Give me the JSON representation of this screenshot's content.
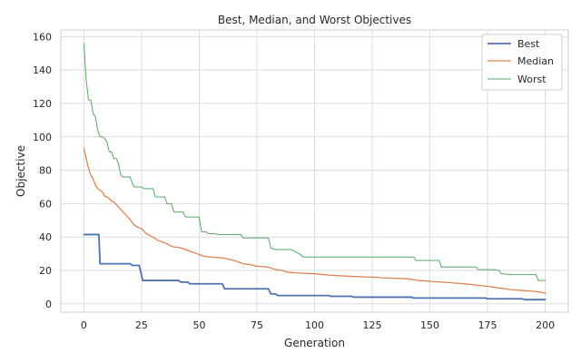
{
  "chart_data": {
    "type": "line",
    "title": "Best, Median, and Worst Objectives",
    "xlabel": "Generation",
    "ylabel": "Objective",
    "xlim": [
      -10,
      210
    ],
    "ylim": [
      -5,
      164
    ],
    "xticks": [
      0,
      25,
      50,
      75,
      100,
      125,
      150,
      175,
      200
    ],
    "yticks": [
      0,
      20,
      40,
      60,
      80,
      100,
      120,
      140,
      160
    ],
    "grid": true,
    "legend_position": "top-right",
    "series": [
      {
        "name": "Best",
        "color": "#4c72b0",
        "width": 1.8,
        "points": [
          [
            0,
            41.5
          ],
          [
            6.5,
            41.5
          ],
          [
            7,
            24
          ],
          [
            20,
            24
          ],
          [
            21,
            23
          ],
          [
            24,
            23
          ],
          [
            25.5,
            14
          ],
          [
            41,
            14
          ],
          [
            42,
            13
          ],
          [
            45,
            13
          ],
          [
            46,
            12
          ],
          [
            60,
            12
          ],
          [
            61,
            9
          ],
          [
            80,
            9
          ],
          [
            81,
            6
          ],
          [
            83,
            6
          ],
          [
            84,
            5
          ],
          [
            106,
            5
          ],
          [
            107,
            4.5
          ],
          [
            116,
            4.5
          ],
          [
            117,
            4
          ],
          [
            142,
            4
          ],
          [
            143,
            3.5
          ],
          [
            174,
            3.5
          ],
          [
            175,
            3
          ],
          [
            190,
            3
          ],
          [
            191,
            2.5
          ],
          [
            200,
            2.5
          ]
        ]
      },
      {
        "name": "Median",
        "color": "#dd8452",
        "width": 1.3,
        "points": [
          [
            0,
            93
          ],
          [
            1,
            87
          ],
          [
            2,
            81
          ],
          [
            3,
            77
          ],
          [
            4,
            75
          ],
          [
            5,
            71
          ],
          [
            6,
            69
          ],
          [
            7,
            68
          ],
          [
            8,
            67
          ],
          [
            9,
            64.5
          ],
          [
            10,
            64
          ],
          [
            11,
            63
          ],
          [
            12,
            61.5
          ],
          [
            13,
            61
          ],
          [
            14,
            59.5
          ],
          [
            15,
            58
          ],
          [
            16,
            56.5
          ],
          [
            17,
            55
          ],
          [
            18,
            53.5
          ],
          [
            19,
            52
          ],
          [
            20,
            50.5
          ],
          [
            21,
            48.5
          ],
          [
            22,
            47
          ],
          [
            23,
            46
          ],
          [
            24,
            45.5
          ],
          [
            25,
            45
          ],
          [
            26,
            43.5
          ],
          [
            27,
            42
          ],
          [
            28,
            41.5
          ],
          [
            29,
            40.5
          ],
          [
            30,
            40
          ],
          [
            31,
            39
          ],
          [
            32,
            38
          ],
          [
            33,
            37.5
          ],
          [
            34,
            37
          ],
          [
            35,
            36.5
          ],
          [
            36,
            36
          ],
          [
            37,
            35
          ],
          [
            38,
            34.5
          ],
          [
            39,
            34
          ],
          [
            40,
            34
          ],
          [
            42,
            33.5
          ],
          [
            44,
            32.5
          ],
          [
            46,
            31.5
          ],
          [
            48,
            30.5
          ],
          [
            50,
            29.5
          ],
          [
            52,
            28.5
          ],
          [
            55,
            28
          ],
          [
            60,
            27.5
          ],
          [
            62,
            27
          ],
          [
            65,
            26
          ],
          [
            67,
            25
          ],
          [
            69,
            24
          ],
          [
            72,
            23.5
          ],
          [
            75,
            22.5
          ],
          [
            80,
            22
          ],
          [
            83,
            20.5
          ],
          [
            86,
            20
          ],
          [
            88,
            19
          ],
          [
            92,
            18.5
          ],
          [
            100,
            18
          ],
          [
            108,
            17
          ],
          [
            115,
            16.5
          ],
          [
            125,
            16
          ],
          [
            130,
            15.5
          ],
          [
            140,
            15
          ],
          [
            145,
            14
          ],
          [
            155,
            13
          ],
          [
            165,
            12
          ],
          [
            175,
            10.5
          ],
          [
            180,
            9.5
          ],
          [
            185,
            8.5
          ],
          [
            190,
            8
          ],
          [
            195,
            7.5
          ],
          [
            198,
            7
          ],
          [
            200,
            6.5
          ]
        ]
      },
      {
        "name": "Worst",
        "color": "#55a868",
        "width": 1.0,
        "points": [
          [
            0,
            156
          ],
          [
            1,
            134
          ],
          [
            2,
            122
          ],
          [
            3,
            122
          ],
          [
            4,
            114
          ],
          [
            5,
            112
          ],
          [
            6,
            104
          ],
          [
            7,
            100
          ],
          [
            8,
            100
          ],
          [
            9,
            99
          ],
          [
            10,
            97
          ],
          [
            11,
            91
          ],
          [
            12,
            91
          ],
          [
            13,
            87
          ],
          [
            14,
            87
          ],
          [
            15,
            84
          ],
          [
            16,
            77
          ],
          [
            17,
            76
          ],
          [
            20,
            76
          ],
          [
            21,
            72
          ],
          [
            22,
            70
          ],
          [
            25,
            70
          ],
          [
            26,
            69
          ],
          [
            30,
            69
          ],
          [
            31,
            64
          ],
          [
            35,
            64
          ],
          [
            36,
            60
          ],
          [
            38,
            60
          ],
          [
            39,
            55
          ],
          [
            43,
            55
          ],
          [
            44,
            52
          ],
          [
            50,
            52
          ],
          [
            51,
            43
          ],
          [
            53,
            43
          ],
          [
            54,
            42
          ],
          [
            57,
            42
          ],
          [
            58,
            41.5
          ],
          [
            68,
            41.5
          ],
          [
            69,
            39.5
          ],
          [
            80,
            39.5
          ],
          [
            81,
            33.5
          ],
          [
            83,
            32.5
          ],
          [
            90,
            32.5
          ],
          [
            92,
            31
          ],
          [
            94,
            29.5
          ],
          [
            95,
            28
          ],
          [
            143,
            28
          ],
          [
            144,
            26
          ],
          [
            154,
            26
          ],
          [
            155,
            22
          ],
          [
            170,
            22
          ],
          [
            171,
            20.5
          ],
          [
            178,
            20.5
          ],
          [
            180,
            20
          ],
          [
            181,
            18
          ],
          [
            186,
            17.5
          ],
          [
            196,
            17.5
          ],
          [
            197,
            14
          ],
          [
            200,
            14
          ]
        ]
      }
    ]
  }
}
